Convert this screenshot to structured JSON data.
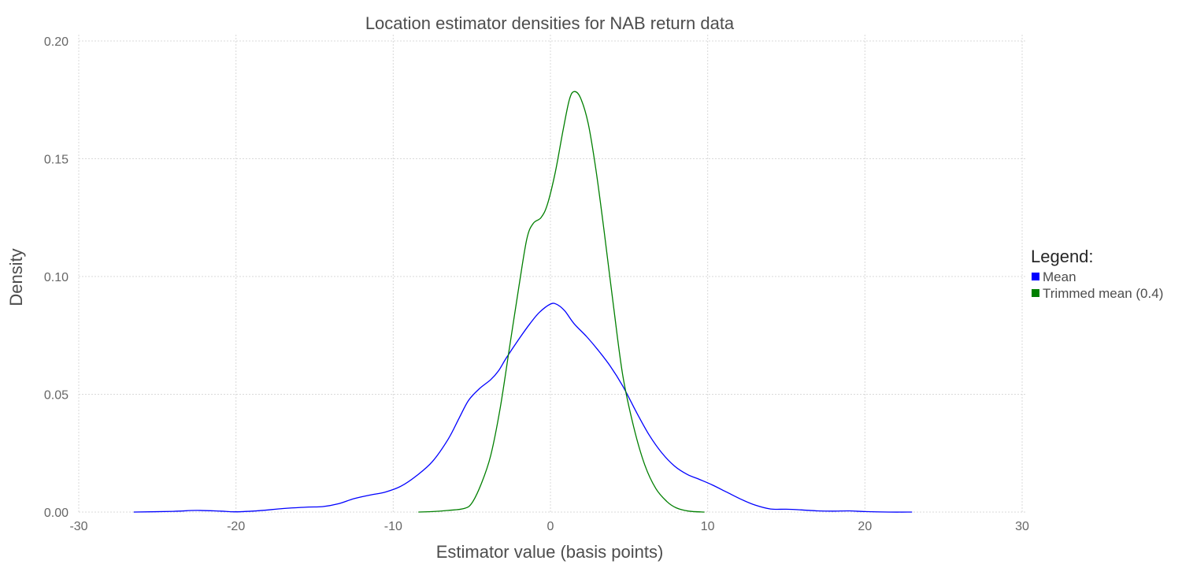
{
  "chart_data": {
    "type": "line",
    "title": "Location estimator densities for NAB return data",
    "xlabel": "Estimator value (basis points)",
    "ylabel": "Density",
    "xlim": [
      -30,
      30
    ],
    "ylim": [
      0,
      0.2
    ],
    "x_ticks": [
      -30,
      -20,
      -10,
      0,
      10,
      20,
      30
    ],
    "x_tick_labels": [
      "-30",
      "-20",
      "-10",
      "0",
      "10",
      "20",
      "30"
    ],
    "y_ticks": [
      0,
      0.05,
      0.1,
      0.15,
      0.2
    ],
    "y_tick_labels": [
      "0.00",
      "0.05",
      "0.10",
      "0.15",
      "0.20"
    ],
    "grid": true,
    "legend": {
      "title": "Legend:",
      "placement": "right"
    },
    "series": [
      {
        "name": "Mean",
        "color": "#0000ff",
        "points": [
          [
            -26.5,
            0.0
          ],
          [
            -24,
            0.0003
          ],
          [
            -22.5,
            0.0007
          ],
          [
            -21,
            0.0004
          ],
          [
            -20,
            0.0001
          ],
          [
            -18.5,
            0.0006
          ],
          [
            -17,
            0.0015
          ],
          [
            -15.5,
            0.0021
          ],
          [
            -14.5,
            0.0023
          ],
          [
            -13.5,
            0.0035
          ],
          [
            -12.5,
            0.0057
          ],
          [
            -11.5,
            0.0072
          ],
          [
            -10.5,
            0.0085
          ],
          [
            -9.5,
            0.011
          ],
          [
            -8.5,
            0.0155
          ],
          [
            -7.5,
            0.0215
          ],
          [
            -6.5,
            0.031
          ],
          [
            -5.8,
            0.04
          ],
          [
            -5.2,
            0.0475
          ],
          [
            -4.5,
            0.0525
          ],
          [
            -3.8,
            0.0562
          ],
          [
            -3.3,
            0.06
          ],
          [
            -2.8,
            0.0655
          ],
          [
            -2.0,
            0.0735
          ],
          [
            -1.3,
            0.08
          ],
          [
            -0.7,
            0.0848
          ],
          [
            0.0,
            0.0883
          ],
          [
            0.4,
            0.0882
          ],
          [
            0.9,
            0.0855
          ],
          [
            1.5,
            0.08
          ],
          [
            2.3,
            0.0745
          ],
          [
            3.0,
            0.069
          ],
          [
            3.8,
            0.062
          ],
          [
            4.6,
            0.0535
          ],
          [
            5.5,
            0.042
          ],
          [
            6.3,
            0.0325
          ],
          [
            7.1,
            0.025
          ],
          [
            7.9,
            0.0195
          ],
          [
            8.7,
            0.016
          ],
          [
            9.5,
            0.0138
          ],
          [
            10.3,
            0.0115
          ],
          [
            11.2,
            0.0085
          ],
          [
            12.1,
            0.0055
          ],
          [
            13.0,
            0.003
          ],
          [
            14.0,
            0.0013
          ],
          [
            15.0,
            0.0012
          ],
          [
            16.0,
            0.0009
          ],
          [
            17.0,
            0.0005
          ],
          [
            18.0,
            0.0004
          ],
          [
            19.0,
            0.0005
          ],
          [
            20.0,
            0.0002
          ],
          [
            21.5,
            0.0
          ],
          [
            23.0,
            0.0
          ]
        ]
      },
      {
        "name": "Trimmed mean (0.4)",
        "color": "#007f00",
        "points": [
          [
            -8.4,
            0.0
          ],
          [
            -7.5,
            0.0002
          ],
          [
            -6.5,
            0.0007
          ],
          [
            -5.5,
            0.0015
          ],
          [
            -5.0,
            0.0038
          ],
          [
            -4.4,
            0.012
          ],
          [
            -3.8,
            0.024
          ],
          [
            -3.2,
            0.044
          ],
          [
            -2.6,
            0.07
          ],
          [
            -2.0,
            0.096
          ],
          [
            -1.5,
            0.116
          ],
          [
            -1.1,
            0.1225
          ],
          [
            -0.6,
            0.125
          ],
          [
            -0.2,
            0.1305
          ],
          [
            0.3,
            0.144
          ],
          [
            0.8,
            0.162
          ],
          [
            1.2,
            0.175
          ],
          [
            1.5,
            0.1785
          ],
          [
            1.9,
            0.176
          ],
          [
            2.4,
            0.165
          ],
          [
            2.9,
            0.145
          ],
          [
            3.4,
            0.12
          ],
          [
            4.0,
            0.088
          ],
          [
            4.6,
            0.058
          ],
          [
            5.3,
            0.036
          ],
          [
            6.0,
            0.02
          ],
          [
            6.7,
            0.01
          ],
          [
            7.4,
            0.0045
          ],
          [
            8.0,
            0.0018
          ],
          [
            8.8,
            0.0004
          ],
          [
            9.8,
            0.0
          ]
        ]
      }
    ]
  }
}
